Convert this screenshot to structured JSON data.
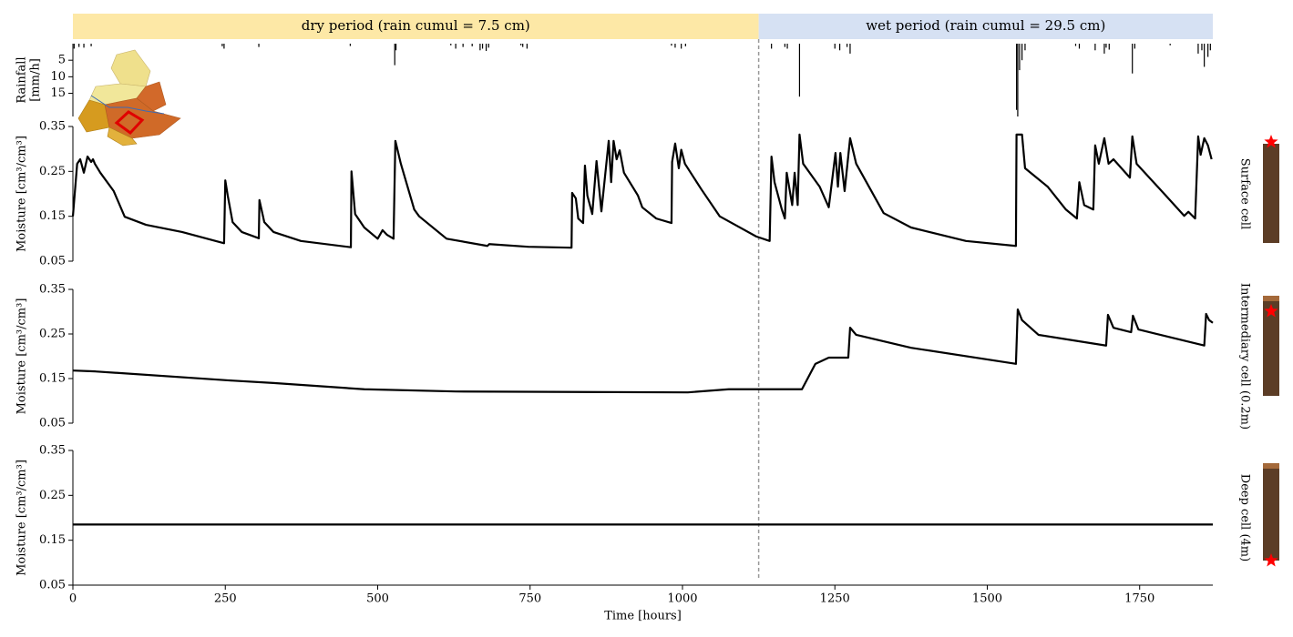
{
  "chart_data": [
    {
      "type": "bar",
      "ylabel_lines": [
        "Rainfall",
        "[mm/h]"
      ],
      "y_inverted": true,
      "xlim": [
        0,
        1870
      ],
      "ylim": [
        0,
        22
      ],
      "yticks": [
        5,
        10,
        15
      ],
      "periods": [
        {
          "label": "dry period (rain cumul = 7.5 cm)",
          "start": 0,
          "end": 1125,
          "color": "#fde8a6"
        },
        {
          "label": "wet period (rain cumul = 29.5 cm)",
          "start": 1125,
          "end": 1870,
          "color": "#d6e1f3"
        }
      ],
      "separator": 1125,
      "series": [
        {
          "color": "#000000",
          "x": [
            2,
            10,
            18,
            30,
            245,
            248,
            305,
            455,
            528,
            530,
            620,
            628,
            640,
            655,
            668,
            672,
            678,
            682,
            735,
            738,
            745,
            982,
            988,
            998,
            1005,
            1146,
            1168,
            1172,
            1192,
            1250,
            1258,
            1270,
            1275,
            1548,
            1550,
            1553,
            1557,
            1562,
            1645,
            1651,
            1677,
            1692,
            1695,
            1700,
            1738,
            1742,
            1800,
            1846,
            1852,
            1856,
            1862,
            1866
          ],
          "values": [
            1.5,
            1,
            1.2,
            0.8,
            0.8,
            1.5,
            1,
            0.7,
            6.5,
            2,
            0.5,
            1.5,
            1,
            0.8,
            2,
            1.5,
            2.2,
            1.2,
            0.5,
            1,
            1.5,
            0.6,
            1.2,
            1.5,
            0.8,
            1.5,
            1,
            1.5,
            16,
            1.5,
            2,
            1,
            3,
            20,
            22,
            8,
            5,
            2,
            0.7,
            1.5,
            2,
            3,
            1.2,
            1.8,
            9,
            1.5,
            0.5,
            3,
            2,
            7,
            4,
            2
          ]
        }
      ]
    },
    {
      "type": "line",
      "ylabel": "Moisture [cm³/cm³]",
      "side_label": "Surface cell",
      "xlim": [
        0,
        1870
      ],
      "ylim": [
        0.05,
        0.35
      ],
      "yticks": [
        0.05,
        0.15,
        0.25,
        0.35
      ],
      "series": [
        {
          "color": "#000000",
          "x": [
            0,
            7,
            12,
            18,
            24,
            30,
            33,
            36,
            45,
            67,
            85,
            120,
            179,
            248,
            250,
            254,
            262,
            277,
            305,
            306,
            314,
            329,
            374,
            456,
            457,
            463,
            478,
            500,
            508,
            515,
            526,
            529,
            538,
            560,
            568,
            613,
            680,
            683,
            747,
            818,
            819,
            825,
            829,
            837,
            840,
            844,
            852,
            859,
            867,
            879,
            883,
            887,
            892,
            897,
            904,
            927,
            934,
            957,
            982,
            983,
            988,
            994,
            998,
            1004,
            1031,
            1061,
            1121,
            1143,
            1146,
            1151,
            1163,
            1168,
            1171,
            1180,
            1184,
            1189,
            1192,
            1198,
            1225,
            1240,
            1251,
            1255,
            1259,
            1266,
            1275,
            1285,
            1330,
            1375,
            1465,
            1547,
            1548,
            1557,
            1562,
            1599,
            1629,
            1647,
            1651,
            1659,
            1674,
            1677,
            1683,
            1692,
            1699,
            1707,
            1734,
            1738,
            1745,
            1793,
            1823,
            1830,
            1841,
            1846,
            1850,
            1856,
            1862,
            1868
          ],
          "values": [
            0.15,
            0.267,
            0.277,
            0.247,
            0.283,
            0.271,
            0.277,
            0.267,
            0.247,
            0.206,
            0.149,
            0.131,
            0.115,
            0.09,
            0.23,
            0.196,
            0.137,
            0.115,
            0.101,
            0.186,
            0.137,
            0.115,
            0.095,
            0.081,
            0.25,
            0.155,
            0.125,
            0.1,
            0.119,
            0.109,
            0.1,
            0.318,
            0.267,
            0.165,
            0.15,
            0.1,
            0.084,
            0.088,
            0.082,
            0.08,
            0.202,
            0.19,
            0.145,
            0.135,
            0.263,
            0.196,
            0.155,
            0.273,
            0.161,
            0.318,
            0.226,
            0.318,
            0.277,
            0.297,
            0.247,
            0.196,
            0.17,
            0.145,
            0.135,
            0.271,
            0.312,
            0.257,
            0.298,
            0.267,
            0.21,
            0.15,
            0.105,
            0.095,
            0.283,
            0.226,
            0.165,
            0.145,
            0.247,
            0.175,
            0.247,
            0.175,
            0.332,
            0.267,
            0.216,
            0.17,
            0.291,
            0.216,
            0.291,
            0.206,
            0.324,
            0.267,
            0.157,
            0.125,
            0.095,
            0.084,
            0.332,
            0.332,
            0.257,
            0.216,
            0.165,
            0.145,
            0.226,
            0.175,
            0.165,
            0.308,
            0.267,
            0.324,
            0.267,
            0.277,
            0.236,
            0.328,
            0.267,
            0.196,
            0.151,
            0.16,
            0.145,
            0.328,
            0.287,
            0.324,
            0.308,
            0.277
          ]
        }
      ]
    },
    {
      "type": "line",
      "ylabel": "Moisture [cm³/cm³]",
      "side_label": "Intermediary cell (0.2m)",
      "xlim": [
        0,
        1870
      ],
      "ylim": [
        0.05,
        0.35
      ],
      "yticks": [
        0.05,
        0.15,
        0.25,
        0.35
      ],
      "series": [
        {
          "color": "#000000",
          "x": [
            0,
            37,
            254,
            329,
            478,
            628,
            1009,
            1076,
            1196,
            1218,
            1240,
            1272,
            1275,
            1285,
            1375,
            1547,
            1550,
            1557,
            1584,
            1695,
            1698,
            1707,
            1736,
            1739,
            1748,
            1856,
            1859,
            1864,
            1870
          ],
          "values": [
            0.168,
            0.166,
            0.146,
            0.14,
            0.126,
            0.121,
            0.119,
            0.126,
            0.126,
            0.183,
            0.197,
            0.197,
            0.264,
            0.248,
            0.219,
            0.183,
            0.305,
            0.281,
            0.248,
            0.224,
            0.293,
            0.264,
            0.254,
            0.291,
            0.26,
            0.224,
            0.295,
            0.281,
            0.275
          ]
        }
      ]
    },
    {
      "type": "line",
      "ylabel": "Moisture [cm³/cm³]",
      "side_label": "Deep cell (4m)",
      "xlim": [
        0,
        1870
      ],
      "ylim": [
        0.05,
        0.35
      ],
      "yticks": [
        0.05,
        0.15,
        0.25,
        0.35
      ],
      "xticks": [
        0,
        250,
        500,
        750,
        1000,
        1250,
        1500,
        1750
      ],
      "xlabel": "Time [hours]",
      "series": [
        {
          "color": "#000000",
          "x": [
            0,
            1870
          ],
          "values": [
            0.185,
            0.185
          ]
        }
      ]
    }
  ]
}
